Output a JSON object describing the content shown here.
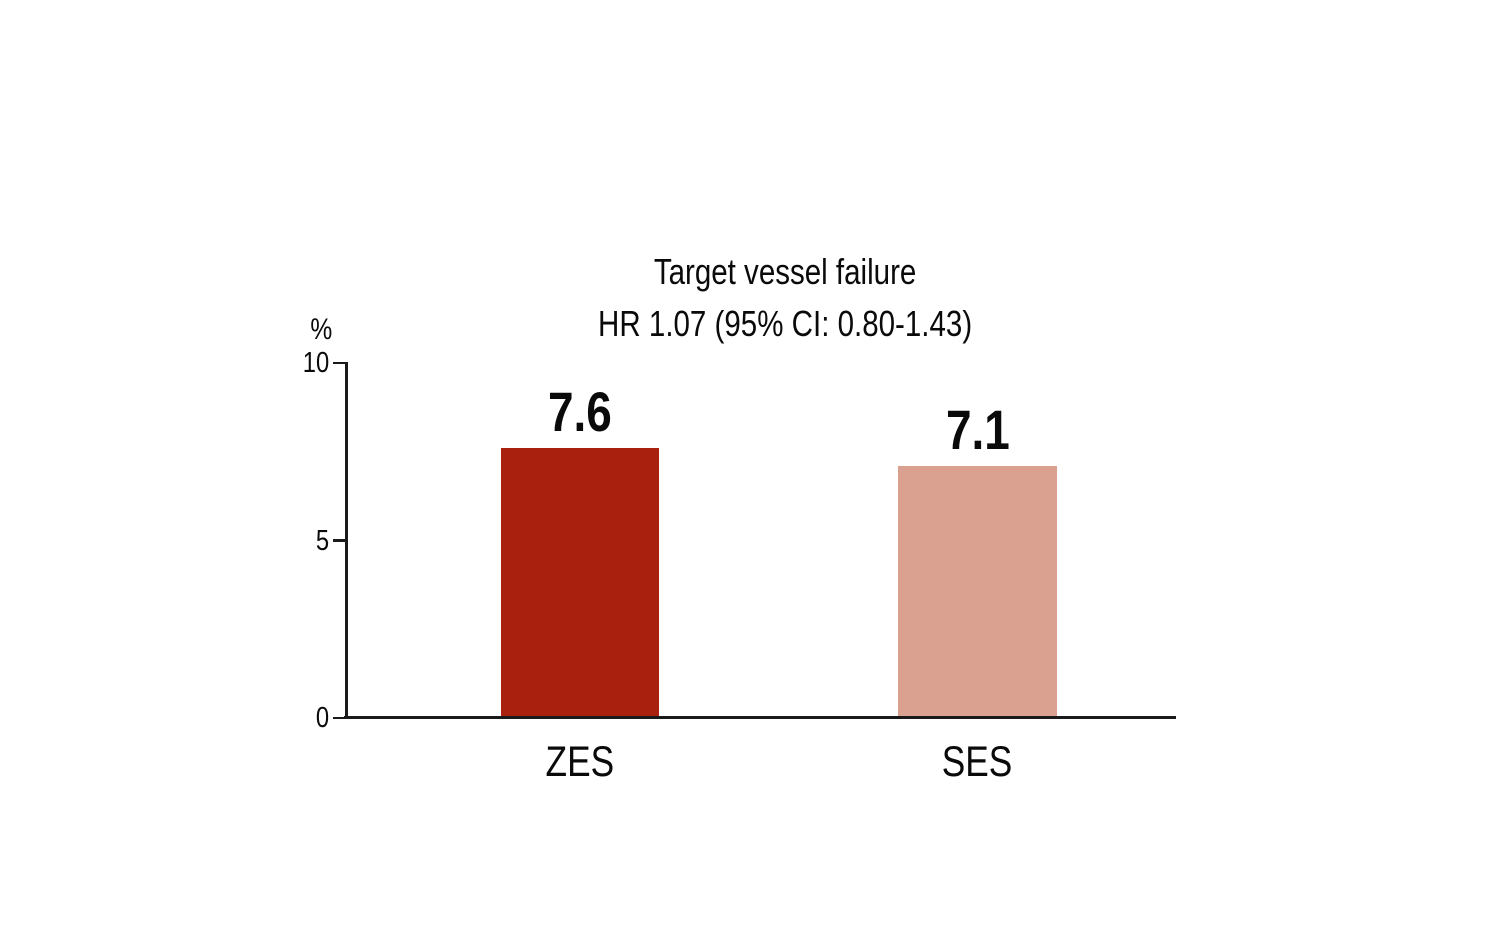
{
  "chart_data": {
    "type": "bar",
    "title": "Target vessel failure",
    "subtitle": "HR 1.07 (95% CI: 0.80-1.43)",
    "ylabel": "%",
    "categories": [
      "ZES",
      "SES"
    ],
    "values": [
      7.6,
      7.1
    ],
    "value_labels": [
      "7.6",
      "7.1"
    ],
    "bar_colors": [
      "#A9200F",
      "#DBA190"
    ],
    "yticks": [
      10,
      5,
      0
    ],
    "ytick_labels": [
      "10",
      "5",
      "0"
    ],
    "ylim": [
      0,
      10
    ],
    "grid": false,
    "legend": false,
    "background_color": "#FFFFFF",
    "text_color": "#0A0A0A",
    "axis_color": "#1A1A1A"
  }
}
